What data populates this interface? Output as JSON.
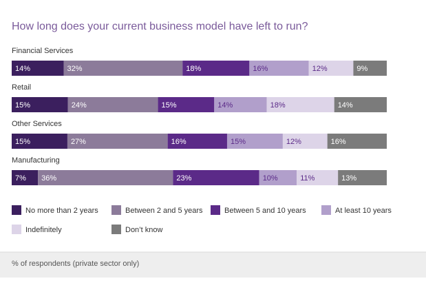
{
  "chart_data": {
    "type": "bar",
    "orientation": "horizontal",
    "stacked": true,
    "title": "How long does your current business model have left to run?",
    "categories": [
      "Financial Services",
      "Retail",
      "Other Services",
      "Manufacturing"
    ],
    "series": [
      {
        "name": "No more than 2 years",
        "color": "#3b1f5e",
        "values": [
          14,
          15,
          15,
          7
        ],
        "value_labels": [
          "14%",
          "15%",
          "15%",
          "7%"
        ]
      },
      {
        "name": "Between 2 and 5 years",
        "color": "#8c7b9a",
        "values": [
          32,
          24,
          27,
          36
        ],
        "value_labels": [
          "32%",
          "24%",
          "27%",
          "36%"
        ]
      },
      {
        "name": "Between 5 and 10 years",
        "color": "#5b2a88",
        "values": [
          18,
          15,
          16,
          23
        ],
        "value_labels": [
          "18%",
          "15%",
          "16%",
          "23%"
        ]
      },
      {
        "name": "At least 10 years",
        "color": "#b19fcb",
        "values": [
          16,
          14,
          15,
          10
        ],
        "value_labels": [
          "16%",
          "14%",
          "15%",
          "10%"
        ]
      },
      {
        "name": "Indefinitely",
        "color": "#ddd4e8",
        "values": [
          12,
          18,
          12,
          11
        ],
        "value_labels": [
          "12%",
          "18%",
          "12%",
          "11%"
        ]
      },
      {
        "name": "Don’t know",
        "color": "#7b7b7b",
        "values": [
          9,
          14,
          16,
          13
        ],
        "value_labels": [
          "9%",
          "14%",
          "16%",
          "13%"
        ]
      }
    ],
    "footnote": "% of respondents (private sector only)"
  }
}
